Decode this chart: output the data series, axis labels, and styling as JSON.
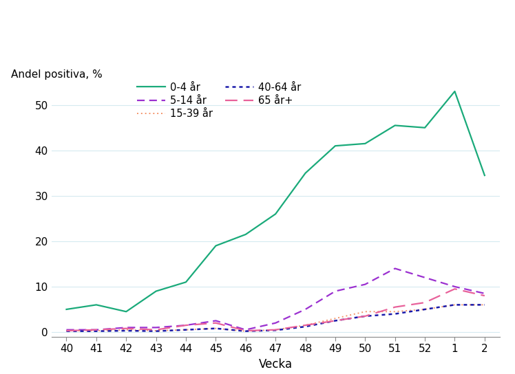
{
  "x_labels": [
    "40",
    "41",
    "42",
    "43",
    "44",
    "45",
    "46",
    "47",
    "48",
    "49",
    "50",
    "51",
    "52",
    "1",
    "2"
  ],
  "x_values": [
    0,
    1,
    2,
    3,
    4,
    5,
    6,
    7,
    8,
    9,
    10,
    11,
    12,
    13,
    14
  ],
  "series": {
    "0-4 år": {
      "values": [
        5.0,
        6.0,
        4.5,
        9.0,
        11.0,
        19.0,
        21.5,
        26.0,
        35.0,
        41.0,
        41.5,
        45.5,
        45.0,
        53.0,
        34.5
      ],
      "color": "#1aaa7a",
      "ls": "-",
      "lw": 1.6
    },
    "5-14 år": {
      "values": [
        0.5,
        0.5,
        1.0,
        1.0,
        1.5,
        2.5,
        0.5,
        2.0,
        5.0,
        9.0,
        10.5,
        14.0,
        12.0,
        10.0,
        8.5
      ],
      "color": "#9b30d0",
      "ls": "--",
      "lw": 1.6
    },
    "15-39 år": {
      "values": [
        0.3,
        0.3,
        0.5,
        0.3,
        0.5,
        0.8,
        0.2,
        0.5,
        1.5,
        3.0,
        4.5,
        4.5,
        5.0,
        6.0,
        6.0
      ],
      "color": "#f4956a",
      "ls": "dotted",
      "lw": 1.4
    },
    "40-64 år": {
      "values": [
        0.2,
        0.2,
        0.3,
        0.2,
        0.5,
        0.8,
        0.2,
        0.4,
        1.2,
        2.5,
        3.5,
        4.0,
        5.0,
        6.0,
        6.0
      ],
      "color": "#1a1aaa",
      "ls": "dotted",
      "lw": 1.8
    },
    "65 år+": {
      "values": [
        0.3,
        0.5,
        0.8,
        0.5,
        1.5,
        2.0,
        0.3,
        0.5,
        1.5,
        2.5,
        3.5,
        5.5,
        6.5,
        9.5,
        8.0
      ],
      "color": "#e8619a",
      "ls": "--",
      "lw": 1.6
    }
  },
  "series_order": [
    "0-4 år",
    "5-14 år",
    "15-39 år",
    "40-64 år",
    "65 år+"
  ],
  "ylabel": "Andel positiva, %",
  "xlabel": "Vecka",
  "ylim": [
    -1,
    55
  ],
  "yticks": [
    0,
    10,
    20,
    30,
    40,
    50
  ],
  "background_color": "#ffffff",
  "grid_color": "#d5eaf0",
  "axis_fontsize": 11,
  "legend_fontsize": 10.5,
  "tick_fontsize": 11
}
